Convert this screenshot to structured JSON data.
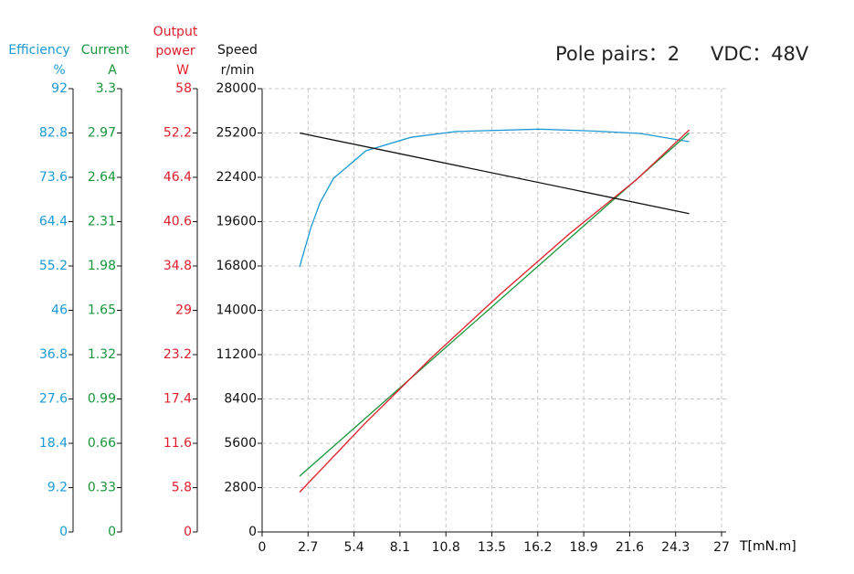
{
  "chart_data": {
    "type": "line",
    "title": "Pole pairs：2",
    "subtitle": "VDC：48V",
    "xlabel": "T[mN.m]",
    "xlim": [
      0,
      27
    ],
    "xticks": [
      0,
      2.7,
      5.4,
      8.1,
      10.8,
      13.5,
      16.2,
      18.9,
      21.6,
      24.3,
      27
    ],
    "grid": true,
    "y_axes": [
      {
        "label": [
          "Efficiency",
          "%"
        ],
        "color": "#1b9ad6",
        "ylim": [
          0,
          92
        ],
        "yticks": [
          0,
          9.2,
          18.4,
          27.6,
          36.8,
          46,
          55.2,
          64.4,
          73.6,
          82.8,
          92
        ]
      },
      {
        "label": [
          "Current",
          "A"
        ],
        "color": "#17963a",
        "ylim": [
          0,
          3.3
        ],
        "yticks": [
          0,
          0.33,
          0.66,
          0.99,
          1.32,
          1.65,
          1.98,
          2.31,
          2.64,
          2.97,
          3.3
        ]
      },
      {
        "label": [
          "Output",
          "power",
          "W"
        ],
        "color": "#de1e2a",
        "ylim": [
          0,
          58
        ],
        "yticks": [
          0,
          5.8,
          11.6,
          17.4,
          23.2,
          29,
          34.8,
          40.6,
          46.4,
          52.2,
          58
        ]
      },
      {
        "label": [
          "Speed",
          "r/min"
        ],
        "color": "#111111",
        "ylim": [
          0,
          28000
        ],
        "yticks": [
          0,
          2800,
          5600,
          8400,
          11200,
          14000,
          16800,
          19600,
          22400,
          25200,
          28000
        ]
      }
    ],
    "series": [
      {
        "axis": 0,
        "color": "#1b9ad6",
        "x": [
          2.2,
          2.85,
          3.4,
          4.2,
          6.1,
          8.75,
          11.4,
          16.3,
          19.5,
          22.2,
          25.1
        ],
        "values": [
          55,
          63,
          68.3,
          73.4,
          79.1,
          81.9,
          83.1,
          83.6,
          83.2,
          82.7,
          81
        ]
      },
      {
        "axis": 1,
        "color": "#17963a",
        "x": [
          2.2,
          25.1
        ],
        "values": [
          0.415,
          2.97
        ]
      },
      {
        "axis": 2,
        "color": "#de1e2a",
        "x": [
          2.2,
          6,
          10,
          14,
          18,
          22,
          25.1
        ],
        "values": [
          5.2,
          14.1,
          22.9,
          31.1,
          38.9,
          46.1,
          52.6
        ]
      },
      {
        "axis": 3,
        "color": "#111111",
        "x": [
          2.2,
          25.1
        ],
        "values": [
          25200,
          20100
        ]
      }
    ]
  }
}
